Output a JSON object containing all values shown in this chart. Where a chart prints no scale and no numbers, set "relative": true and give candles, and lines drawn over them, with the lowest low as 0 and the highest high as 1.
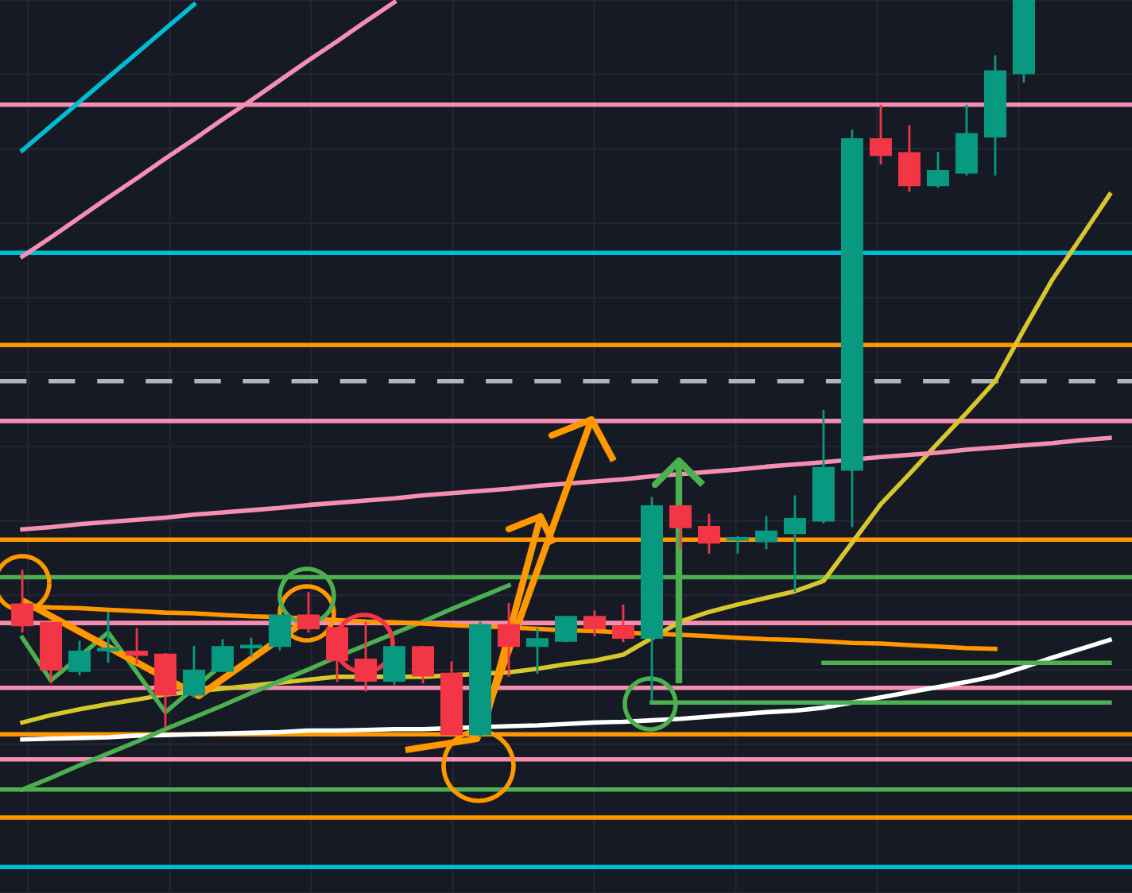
{
  "chart_data": {
    "type": "candlestick",
    "relative": true,
    "grid": true,
    "categories": [
      null,
      null,
      null,
      null,
      null,
      null,
      null,
      null,
      null,
      null,
      null,
      null,
      null,
      null,
      null,
      null,
      null,
      null,
      null,
      null,
      null,
      null,
      null,
      null,
      null,
      null,
      null,
      null,
      null,
      null,
      null,
      null,
      null,
      null,
      null,
      null,
      null,
      null,
      null
    ],
    "ohlc": [
      [
        0.18,
        0.227,
        0.142,
        0.152
      ],
      [
        0.155,
        0.155,
        0.073,
        0.092
      ],
      [
        0.09,
        0.131,
        0.084,
        0.116
      ],
      [
        0.118,
        0.17,
        0.101,
        0.12
      ],
      [
        0.116,
        0.148,
        0.099,
        0.112
      ],
      [
        0.112,
        0.114,
        0.013,
        0.058
      ],
      [
        0.058,
        0.124,
        0.054,
        0.09
      ],
      [
        0.09,
        0.133,
        0.09,
        0.122
      ],
      [
        0.122,
        0.135,
        0.109,
        0.124
      ],
      [
        0.124,
        0.165,
        0.118,
        0.165
      ],
      [
        0.165,
        0.197,
        0.142,
        0.148
      ],
      [
        0.148,
        0.15,
        0.075,
        0.105
      ],
      [
        0.105,
        0.157,
        0.062,
        0.077
      ],
      [
        0.077,
        0.124,
        0.071,
        0.122
      ],
      [
        0.122,
        0.124,
        0.073,
        0.084
      ],
      [
        0.086,
        0.103,
        0.004,
        0.004
      ],
      [
        0.004,
        0.157,
        0,
        0.152
      ],
      [
        0.152,
        0.182,
        0.082,
        0.124
      ],
      [
        0.124,
        0.148,
        0.086,
        0.133
      ],
      [
        0.131,
        0.163,
        0.129,
        0.163
      ],
      [
        0.163,
        0.172,
        0.137,
        0.148
      ],
      [
        0.15,
        0.18,
        0.129,
        0.135
      ],
      [
        0.135,
        0.326,
        0.049,
        0.313
      ],
      [
        0.313,
        0.313,
        0.255,
        0.285
      ],
      [
        0.285,
        0.303,
        0.249,
        0.264
      ],
      [
        0.268,
        0.273,
        0.249,
        0.268
      ],
      [
        0.266,
        0.3,
        0.255,
        0.279
      ],
      [
        0.277,
        0.328,
        0.197,
        0.296
      ],
      [
        0.294,
        0.444,
        0.29,
        0.365
      ],
      [
        0.363,
        0.824,
        0.285,
        0.811
      ],
      [
        0.811,
        0.858,
        0.777,
        0.79
      ],
      [
        0.792,
        0.83,
        0.74,
        0.749
      ],
      [
        0.749,
        0.794,
        0.745,
        0.768
      ],
      [
        0.766,
        0.858,
        0.762,
        0.818
      ],
      [
        0.815,
        0.925,
        0.762,
        0.903
      ],
      [
        0.901,
        1,
        0.888,
        1
      ],
      null,
      null,
      null
    ],
    "colors": [
      "#f23645",
      "#f23645",
      "#089981",
      "#089981",
      "#f23645",
      "#f23645",
      "#089981",
      "#089981",
      "#089981",
      "#089981",
      "#f23645",
      "#f23645",
      "#f23645",
      "#089981",
      "#f23645",
      "#f23645",
      "#089981",
      "#f23645",
      "#089981",
      "#089981",
      "#f23645",
      "#f23645",
      "#089981",
      "#f23645",
      "#f23645",
      "#089981",
      "#089981",
      "#089981",
      "#089981",
      "#089981",
      "#f23645",
      "#f23645",
      "#089981",
      "#089981",
      "#089981",
      "#089981",
      null,
      null,
      null
    ],
    "series": [
      {
        "type": "line",
        "color": "#d8c72c",
        "values": [
          0.02,
          0.03,
          0.038,
          0.045,
          0.051,
          0.058,
          0.062,
          0.066,
          0.07,
          0.074,
          0.078,
          0.082,
          0.082,
          null,
          0.082,
          null,
          null,
          0.088,
          0.093,
          0.099,
          0.104,
          0.112,
          null,
          0.157,
          0.17,
          0.18,
          0.189,
          0.198,
          0.212,
          0.264,
          0.316,
          0.357,
          0.399,
          0.44,
          0.483,
          0.553,
          0.621,
          0.678,
          0.736
        ]
      },
      {
        "type": "line",
        "color": "#ffffff",
        "values": [
          -0.003,
          -0.002,
          -0.001,
          0.0,
          0.002,
          0.003,
          0.004,
          0.005,
          0.006,
          0.007,
          0.009,
          0.009,
          0.01,
          0.011,
          0.011,
          null,
          null,
          0.015,
          0.016,
          0.018,
          0.02,
          0.021,
          0.023,
          0.025,
          0.028,
          0.031,
          0.034,
          0.036,
          0.04,
          0.047,
          0.054,
          0.061,
          0.068,
          0.075,
          0.083,
          0.095,
          0.108,
          0.12,
          0.132
        ]
      },
      {
        "type": "line",
        "color": "#00bcd4",
        "values": [
          0.796,
          0.829,
          0.862,
          0.895,
          0.928,
          0.961,
          0.994,
          null,
          null,
          null,
          null,
          null,
          null,
          null,
          null,
          null,
          null,
          null,
          null,
          null,
          null,
          null,
          null,
          null,
          null,
          null,
          null,
          null,
          null,
          null,
          null,
          null,
          null,
          null,
          null,
          null,
          null,
          null,
          null
        ]
      },
      {
        "type": "line",
        "color": "#f48fb1",
        "values": [
          0.652,
          0.678,
          0.705,
          0.732,
          0.758,
          0.785,
          0.811,
          0.838,
          0.864,
          0.891,
          0.918,
          0.944,
          0.971,
          0.997,
          null,
          null,
          null,
          null,
          null,
          null,
          null,
          null,
          null,
          null,
          null,
          null,
          null,
          null,
          null,
          null,
          null,
          null,
          null,
          null,
          null,
          null,
          null,
          null,
          null
        ]
      },
      {
        "type": "line",
        "color": "#f48fb1",
        "values": [
          0.282,
          0.285,
          0.289,
          0.292,
          0.295,
          0.298,
          0.302,
          0.305,
          0.308,
          0.311,
          0.315,
          0.318,
          0.321,
          0.324,
          0.328,
          0.331,
          0.334,
          0.337,
          0.341,
          0.344,
          0.347,
          0.35,
          0.354,
          0.357,
          0.36,
          0.363,
          0.367,
          0.37,
          0.373,
          null,
          0.38,
          0.383,
          0.386,
          0.39,
          0.393,
          0.396,
          0.399,
          0.403,
          0.406
        ]
      },
      {
        "type": "line",
        "color": "#4caf50",
        "values": [
          -0.071,
          -0.055,
          -0.038,
          -0.022,
          -0.006,
          0.011,
          0.027,
          0.043,
          0.06,
          0.076,
          0.092,
          0.109,
          0.125,
          0.141,
          0.157,
          0.174,
          0.19,
          0.206,
          null,
          null,
          null,
          null,
          null,
          null,
          null,
          null,
          null,
          null,
          null,
          null,
          null,
          null,
          null,
          null,
          null,
          null,
          null,
          null,
          null
        ]
      },
      {
        "type": "line",
        "color": "#ff9800",
        "values": [
          0.178,
          0.176,
          0.175,
          0.173,
          0.171,
          0.169,
          0.168,
          0.166,
          0.164,
          0.163,
          0.161,
          0.159,
          0.157,
          0.156,
          0.154,
          0.152,
          null,
          0.149,
          0.147,
          0.145,
          0.144,
          0.142,
          null,
          0.139,
          0.137,
          0.135,
          0.133,
          0.132,
          0.13,
          0.128,
          0.127,
          0.125,
          0.123,
          0.121,
          0.12,
          null,
          null,
          null,
          null
        ]
      },
      {
        "type": "line",
        "color": "#4caf50",
        "values": [
          null,
          null,
          null,
          null,
          null,
          null,
          null,
          null,
          null,
          null,
          null,
          null,
          null,
          null,
          null,
          null,
          null,
          null,
          null,
          null,
          null,
          null,
          null,
          null,
          null,
          null,
          null,
          null,
          0.101,
          0.101,
          0.101,
          0.101,
          0.101,
          0.101,
          0.101,
          0.101,
          0.101,
          0.101,
          0.101
        ]
      },
      {
        "type": "line",
        "color": "#4caf50",
        "values": [
          0.135,
          0.077,
          null,
          0.142,
          null,
          0.034,
          null,
          0.099,
          null,
          null,
          null,
          null,
          null,
          null,
          null,
          null,
          null,
          null,
          null,
          null,
          null,
          null,
          null,
          null,
          null,
          null,
          null,
          null,
          null,
          null,
          null,
          null,
          null,
          null,
          null,
          null,
          null,
          null,
          null
        ]
      },
      {
        "type": "line",
        "color": "#4caf50",
        "values": [
          null,
          null,
          null,
          null,
          null,
          null,
          null,
          null,
          null,
          null,
          null,
          null,
          null,
          null,
          null,
          null,
          null,
          null,
          null,
          null,
          null,
          null,
          0.047,
          0.047,
          0.047,
          0.047,
          0.047,
          0.047,
          0.047,
          0.047,
          0.047,
          0.047,
          0.047,
          0.047,
          0.047,
          0.047,
          0.047,
          0.047,
          0.047
        ]
      }
    ],
    "ref_lines": [
      {
        "axis": "y",
        "value": 0.858,
        "color": "#f48fb1"
      },
      {
        "axis": "y",
        "value": 0.657,
        "color": "#00bcd4"
      },
      {
        "axis": "y",
        "value": 0.532,
        "color": "#ff9800"
      },
      {
        "axis": "y",
        "value": 0.483,
        "color": "#b2b5be",
        "line_style": "dashed"
      },
      {
        "axis": "y",
        "value": 0.429,
        "color": "#f48fb1"
      },
      {
        "axis": "y",
        "value": 0.268,
        "color": "#ff9800"
      },
      {
        "axis": "y",
        "value": 0.217,
        "color": "#4caf50"
      },
      {
        "axis": "y",
        "value": 0.155,
        "color": "#f48fb1"
      },
      {
        "axis": "y",
        "value": 0.067,
        "color": "#f48fb1"
      },
      {
        "axis": "y",
        "value": 0.004,
        "color": "#ff9800"
      },
      {
        "axis": "y",
        "value": -0.03,
        "color": "#f48fb1"
      },
      {
        "axis": "y",
        "value": -0.071,
        "color": "#4caf50"
      },
      {
        "axis": "y",
        "value": -0.109,
        "color": "#ff9800"
      },
      {
        "axis": "y",
        "value": -0.176,
        "color": "#00bcd4"
      }
    ]
  }
}
